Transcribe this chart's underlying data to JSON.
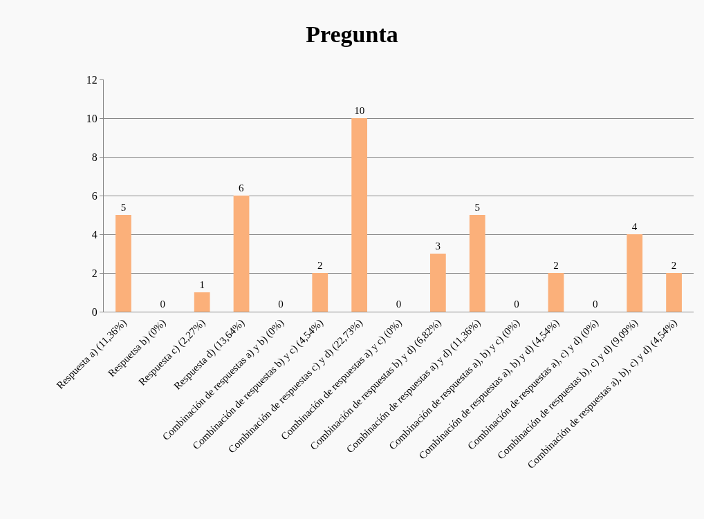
{
  "chart_data": {
    "type": "bar",
    "title": "Pregunta",
    "categories": [
      "Respuesta a) (11,36%)",
      "Respuetsa b) (0%)",
      "Respuesta c) (2,27%)",
      "Respuesta d) (13,64%)",
      "Combinación de respuestas a) y b) (0%)",
      "Combinación de respuestas b) y c) (4,54%)",
      "Combinación de respuestas c) y d) (22,73%)",
      "Combinación de respuestas a) y c) (0%)",
      "Combinación de respuestas b) y d) (6,82%)",
      "Combinación de respuestas a) y d) (11,36%)",
      "Combinación de respuestas a), b) y c) (0%)",
      "Combinación de respuestas a), b) y d) (4,54%)",
      "Combinación de respuestas a), c) y d) (0%)",
      "Combinación de respuestas b), c) y d) (9,09%)",
      "Combinación de respuestas a), b), c) y d) (4,54%)"
    ],
    "values": [
      5,
      0,
      1,
      6,
      0,
      2,
      10,
      0,
      3,
      5,
      0,
      2,
      0,
      4,
      2
    ],
    "color": "#fbb07a",
    "ylim": [
      0,
      12
    ],
    "yticks": [
      0,
      2,
      4,
      6,
      8,
      10,
      12
    ],
    "grid": "y",
    "data_labels": true,
    "legend": false
  }
}
